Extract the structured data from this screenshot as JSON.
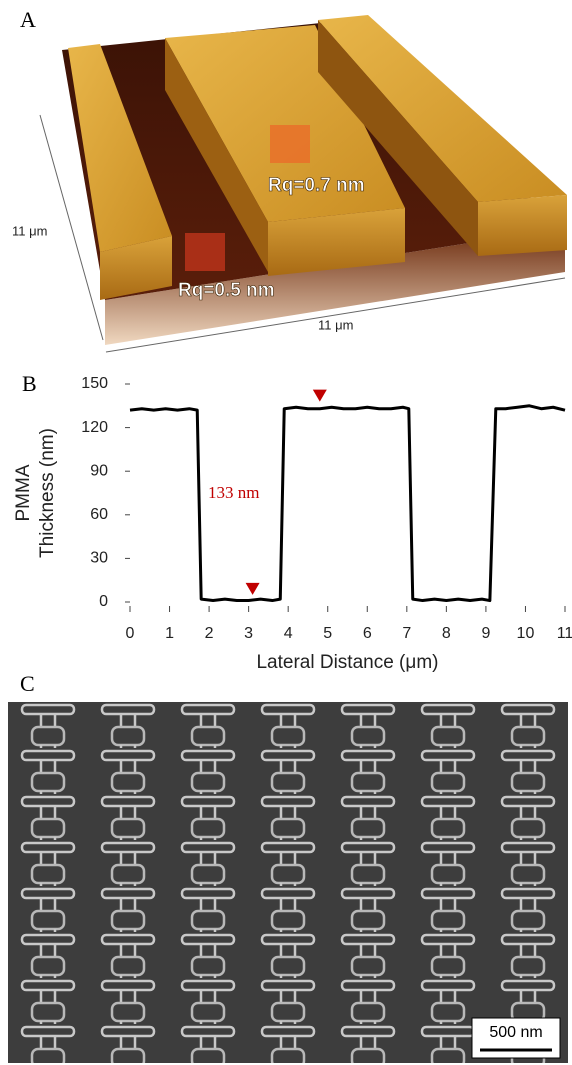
{
  "panels": {
    "a": {
      "label": "A",
      "depth_size": "11 μm",
      "width_size": "11 μm",
      "roughness_top": "Rq=0.7 nm",
      "roughness_floor": "Rq=0.5 nm"
    },
    "c": {
      "label": "C",
      "scale_bar": "500 nm"
    }
  },
  "chart_data": {
    "type": "line",
    "panel_label": "B",
    "xlabel": "Lateral Distance (μm)",
    "ylabel": [
      "PMMA",
      "Thickness (nm)"
    ],
    "annotation": "133 nm",
    "annotation_color": "#c00000",
    "x": [
      0,
      0.3,
      0.6,
      0.9,
      1.2,
      1.5,
      1.7,
      1.8,
      2.1,
      2.4,
      2.7,
      3.0,
      3.3,
      3.6,
      3.8,
      3.9,
      4.2,
      4.5,
      4.8,
      5.1,
      5.4,
      5.7,
      6.0,
      6.3,
      6.6,
      6.9,
      7.05,
      7.15,
      7.4,
      7.7,
      8.0,
      8.3,
      8.6,
      8.9,
      9.1,
      9.25,
      9.5,
      9.8,
      10.1,
      10.4,
      10.7,
      11
    ],
    "series": [
      {
        "color": "#000000",
        "values": [
          132,
          133,
          132,
          133,
          132,
          133,
          132,
          2,
          1,
          2,
          1,
          1,
          2,
          1,
          2,
          133,
          134,
          133,
          133,
          134,
          133,
          133,
          134,
          133,
          133,
          134,
          133,
          2,
          1,
          2,
          1,
          2,
          1,
          2,
          1,
          133,
          133,
          134,
          135,
          133,
          134,
          132
        ]
      }
    ],
    "markers": {
      "color": "#c00000",
      "x": [
        3.1,
        4.8
      ],
      "y": [
        9,
        142
      ]
    },
    "xlim": [
      0,
      11
    ],
    "xticks": [
      0,
      1,
      2,
      3,
      4,
      5,
      6,
      7,
      8,
      9,
      10,
      11
    ],
    "ylim": [
      0,
      150
    ],
    "yticks": [
      0,
      30,
      60,
      90,
      120,
      150
    ]
  }
}
